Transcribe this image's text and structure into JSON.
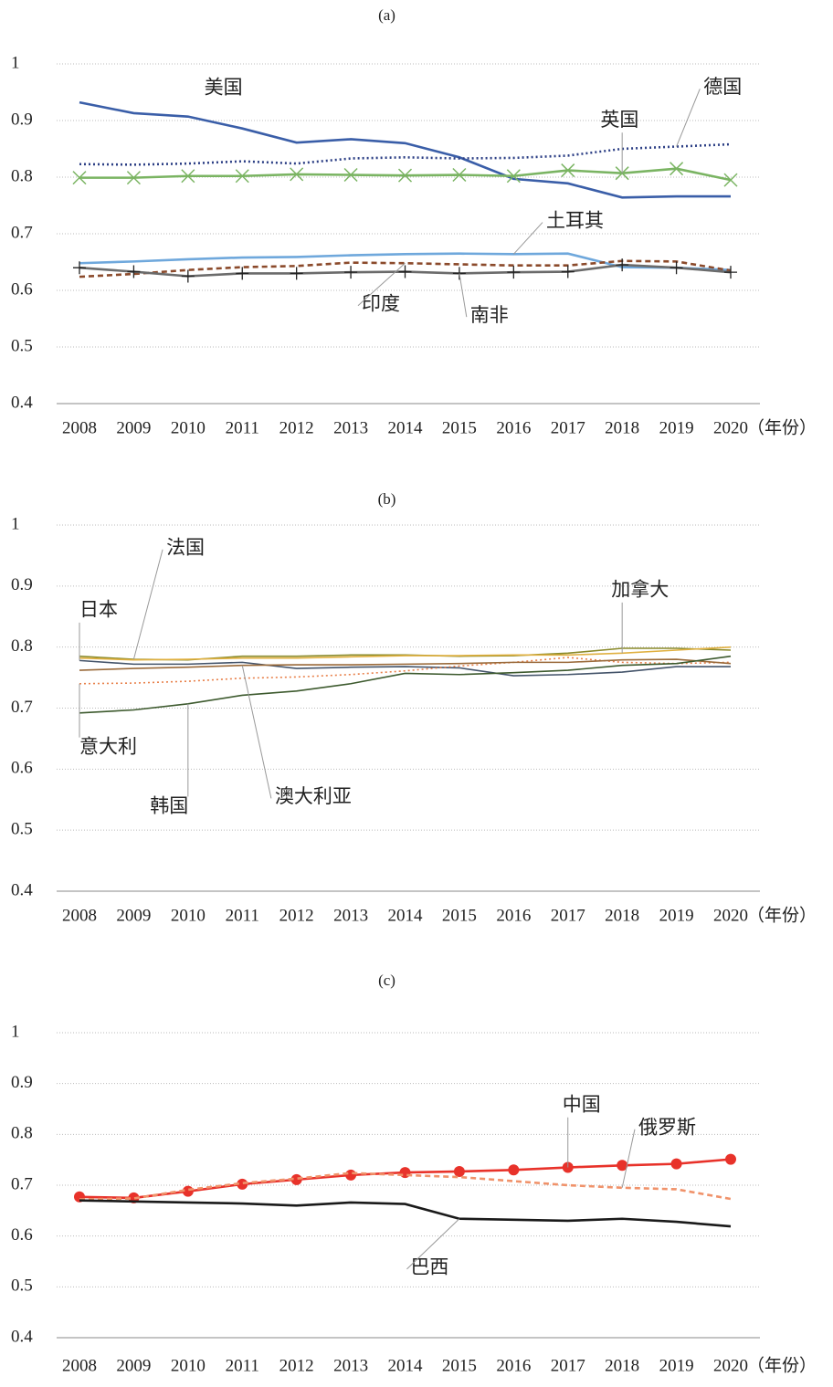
{
  "chart_data": [
    {
      "type": "line",
      "title": "(a)",
      "x_label": "（年份）",
      "grid": true,
      "ylim": [
        0.4,
        1
      ],
      "yticks": [
        0.4,
        0.5,
        0.6,
        0.7,
        0.8,
        0.9,
        1
      ],
      "categories": [
        "2008",
        "2009",
        "2010",
        "2011",
        "2012",
        "2013",
        "2014",
        "2015",
        "2016",
        "2017",
        "2018",
        "2019",
        "2020"
      ],
      "series": [
        {
          "name": "美国",
          "color": "#3a5ea8",
          "style": "solid",
          "values": [
            0.932,
            0.913,
            0.907,
            0.886,
            0.861,
            0.867,
            0.86,
            0.835,
            0.797,
            0.789,
            0.764,
            0.766,
            0.766
          ]
        },
        {
          "name": "德国",
          "color": "#2c3f85",
          "style": "dotted",
          "values": [
            0.823,
            0.822,
            0.824,
            0.828,
            0.824,
            0.833,
            0.835,
            0.833,
            0.834,
            0.838,
            0.85,
            0.854,
            0.858
          ]
        },
        {
          "name": "英国",
          "color": "#7ab462",
          "style": "solid",
          "marker": "x",
          "values": [
            0.799,
            0.799,
            0.802,
            0.802,
            0.805,
            0.804,
            0.803,
            0.804,
            0.802,
            0.812,
            0.807,
            0.815,
            0.795
          ]
        },
        {
          "name": "土耳其",
          "color": "#6fa8dc",
          "style": "solid",
          "values": [
            0.648,
            0.651,
            0.655,
            0.658,
            0.659,
            0.662,
            0.664,
            0.665,
            0.664,
            0.665,
            0.641,
            0.64,
            0.636
          ]
        },
        {
          "name": "印度",
          "color": "#8b4a2b",
          "style": "dashed",
          "values": [
            0.624,
            0.629,
            0.636,
            0.641,
            0.643,
            0.649,
            0.648,
            0.646,
            0.644,
            0.644,
            0.652,
            0.651,
            0.635
          ]
        },
        {
          "name": "南非",
          "color": "#6b6b6b",
          "style": "solid",
          "marker": "plus",
          "values": [
            0.64,
            0.633,
            0.625,
            0.63,
            0.63,
            0.632,
            0.633,
            0.63,
            0.632,
            0.633,
            0.645,
            0.64,
            0.632
          ]
        }
      ]
    },
    {
      "type": "line",
      "title": "(b)",
      "x_label": "（年份）",
      "grid": true,
      "ylim": [
        0.4,
        1
      ],
      "yticks": [
        0.4,
        0.5,
        0.6,
        0.7,
        0.8,
        0.9,
        1
      ],
      "categories": [
        "2008",
        "2009",
        "2010",
        "2011",
        "2012",
        "2013",
        "2014",
        "2015",
        "2016",
        "2017",
        "2018",
        "2019",
        "2020"
      ],
      "series": [
        {
          "name": "日本",
          "color": "#44546a",
          "style": "solid",
          "values": [
            0.778,
            0.772,
            0.772,
            0.775,
            0.765,
            0.767,
            0.768,
            0.766,
            0.753,
            0.755,
            0.759,
            0.768,
            0.768
          ]
        },
        {
          "name": "法国",
          "color": "#8a8a2a",
          "style": "solid",
          "values": [
            0.785,
            0.78,
            0.779,
            0.785,
            0.785,
            0.787,
            0.787,
            0.785,
            0.786,
            0.79,
            0.798,
            0.798,
            0.795
          ]
        },
        {
          "name": "加拿大",
          "color": "#e0b040",
          "style": "solid",
          "values": [
            0.782,
            0.779,
            0.78,
            0.782,
            0.782,
            0.784,
            0.786,
            0.786,
            0.787,
            0.787,
            0.79,
            0.795,
            0.8
          ]
        },
        {
          "name": "意大利",
          "color": "#e8804a",
          "style": "dotted",
          "values": [
            0.74,
            0.741,
            0.744,
            0.749,
            0.751,
            0.755,
            0.761,
            0.769,
            0.775,
            0.783,
            0.775,
            0.773,
            0.775
          ]
        },
        {
          "name": "澳大利亚",
          "color": "#9a6a3a",
          "style": "solid",
          "values": [
            0.762,
            0.765,
            0.767,
            0.77,
            0.771,
            0.771,
            0.772,
            0.773,
            0.775,
            0.775,
            0.779,
            0.78,
            0.773
          ]
        },
        {
          "name": "韩国",
          "color": "#3d5a2e",
          "style": "solid",
          "values": [
            0.692,
            0.697,
            0.707,
            0.721,
            0.728,
            0.74,
            0.757,
            0.755,
            0.758,
            0.762,
            0.77,
            0.773,
            0.785
          ]
        }
      ]
    },
    {
      "type": "line",
      "title": "(c)",
      "x_label": "（年份）",
      "grid": true,
      "ylim": [
        0.4,
        1
      ],
      "yticks": [
        0.4,
        0.5,
        0.6,
        0.7,
        0.8,
        0.9,
        1
      ],
      "categories": [
        "2008",
        "2009",
        "2010",
        "2011",
        "2012",
        "2013",
        "2014",
        "2015",
        "2016",
        "2017",
        "2018",
        "2019",
        "2020"
      ],
      "series": [
        {
          "name": "中国",
          "color": "#e8322a",
          "style": "solid",
          "marker": "circle",
          "values": [
            0.677,
            0.675,
            0.688,
            0.702,
            0.711,
            0.72,
            0.725,
            0.727,
            0.73,
            0.735,
            0.739,
            0.742,
            0.751
          ]
        },
        {
          "name": "俄罗斯",
          "color": "#f0926a",
          "style": "dashed",
          "values": [
            0.672,
            0.674,
            0.691,
            0.704,
            0.713,
            0.724,
            0.72,
            0.716,
            0.708,
            0.7,
            0.695,
            0.692,
            0.673
          ]
        },
        {
          "name": "巴西",
          "color": "#1a1a1a",
          "style": "solid",
          "values": [
            0.67,
            0.668,
            0.666,
            0.664,
            0.66,
            0.666,
            0.663,
            0.634,
            0.632,
            0.63,
            0.634,
            0.628,
            0.619
          ]
        }
      ]
    }
  ]
}
